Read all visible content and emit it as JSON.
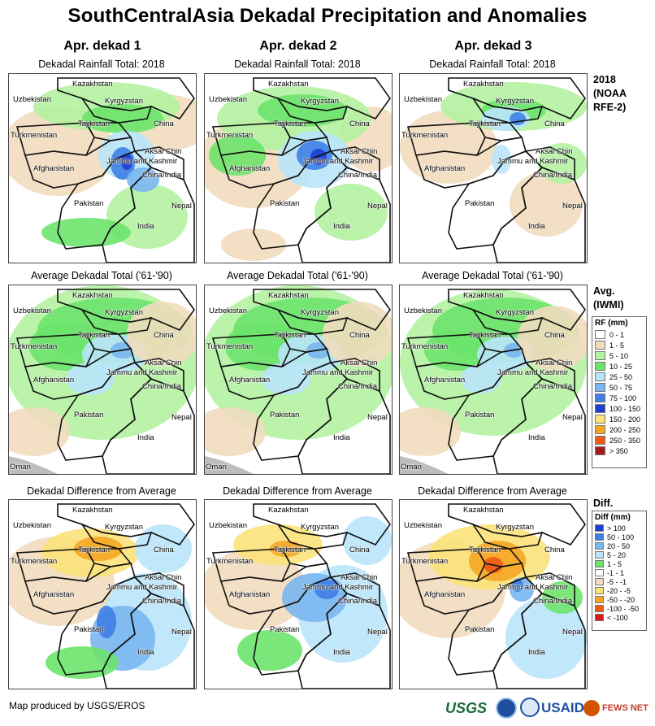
{
  "title": "SouthCentralAsia Dekadal Precipitation and Anomalies",
  "columns": [
    "Apr. dekad 1",
    "Apr. dekad 2",
    "Apr. dekad 3"
  ],
  "rows": [
    {
      "panel_title": "Dekadal Rainfall Total: 2018",
      "side_label": [
        "2018",
        "(NOAA",
        "RFE-2)"
      ]
    },
    {
      "panel_title": "Average Dekadal Total ('61-'90)",
      "side_label": [
        "Avg.",
        "(IWMI)"
      ]
    },
    {
      "panel_title": "Dekadal Difference from Average",
      "side_label": [
        "Diff."
      ]
    }
  ],
  "map_labels": {
    "kazakhstan": "Kazakhstan",
    "uzbekistan": "Uzbekistan",
    "kyrgyzstan": "Kyrgyzstan",
    "tajikistan": "Tajikistan",
    "china": "China",
    "turkmenistan": "Turkmenistan",
    "aksai_chin": "Aksai Chin",
    "jammu": "Jammu and Kashmir",
    "afghanistan": "Afghanistan",
    "china_india": "China/India",
    "pakistan": "Pakistan",
    "nepal": "Nepal",
    "india": "India",
    "oman": "Oman"
  },
  "rf_legend": {
    "title": "RF (mm)",
    "items": [
      {
        "label": "0 - 1",
        "color": "#ffffff"
      },
      {
        "label": "1 - 5",
        "color": "#f1dcbe"
      },
      {
        "label": "5 - 10",
        "color": "#b2f2a0"
      },
      {
        "label": "10 - 25",
        "color": "#6de36b"
      },
      {
        "label": "25 - 50",
        "color": "#b9e4fa"
      },
      {
        "label": "50 - 75",
        "color": "#79b6ef"
      },
      {
        "label": "75 - 100",
        "color": "#3f7fe6"
      },
      {
        "label": "100 - 150",
        "color": "#1c3fd1"
      },
      {
        "label": "150 - 200",
        "color": "#fbe27a"
      },
      {
        "label": "200 - 250",
        "color": "#f5a623"
      },
      {
        "label": "250 - 350",
        "color": "#f05a16"
      },
      {
        "label": "> 350",
        "color": "#a11a1a"
      }
    ]
  },
  "diff_legend": {
    "title": "Diff (mm)",
    "items": [
      {
        "label": "> 100",
        "color": "#1c3fd1"
      },
      {
        "label": "50 - 100",
        "color": "#3f7fe6"
      },
      {
        "label": "20 - 50",
        "color": "#79b6ef"
      },
      {
        "label": "5 - 20",
        "color": "#b9e4fa"
      },
      {
        "label": "1 - 5",
        "color": "#6de36b"
      },
      {
        "label": "-1 - 1",
        "color": "#ffffff"
      },
      {
        "label": "-5 - -1",
        "color": "#f1dcbe"
      },
      {
        "label": "-20 - -5",
        "color": "#fbe27a"
      },
      {
        "label": "-50 - -20",
        "color": "#f5a623"
      },
      {
        "label": "-100 - -50",
        "color": "#f05a16"
      },
      {
        "label": "< -100",
        "color": "#d7191c"
      }
    ]
  },
  "footer": "Map produced by USGS/EROS",
  "logos": {
    "usgs": "USGS",
    "usaid": "USAID",
    "fews": "FEWS NET"
  }
}
